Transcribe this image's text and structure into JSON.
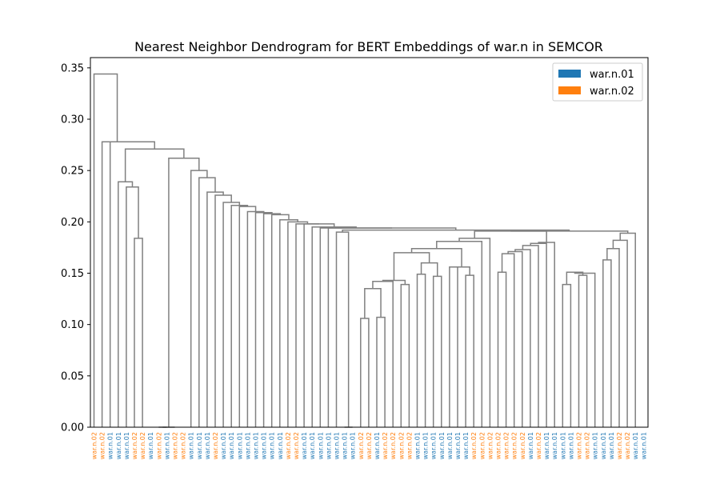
{
  "chart_data": {
    "type": "dendrogram",
    "title": "Nearest Neighbor Dendrogram for BERT Embeddings of war.n in SEMCOR",
    "xlabel": "",
    "ylabel": "",
    "ylim": [
      0,
      0.36
    ],
    "yticks": [
      "0.00",
      "0.05",
      "0.10",
      "0.15",
      "0.20",
      "0.25",
      "0.30",
      "0.35"
    ],
    "grid": false,
    "legend_position": "top-right",
    "legend": [
      {
        "label": "war.n.01",
        "color": "#1f77b4"
      },
      {
        "label": "war.n.02",
        "color": "#ff7f0e"
      }
    ],
    "link_color": "#808080",
    "leaf_labels": [
      "war.n.02",
      "war.n.02",
      "war.n.01",
      "war.n.01",
      "war.n.01",
      "war.n.02",
      "war.n.02",
      "war.n.01",
      "war.n.02",
      "war.n.01",
      "war.n.02",
      "war.n.02",
      "war.n.01",
      "war.n.01",
      "war.n.01",
      "war.n.02",
      "war.n.01",
      "war.n.01",
      "war.n.01",
      "war.n.01",
      "war.n.01",
      "war.n.01",
      "war.n.01",
      "war.n.01",
      "war.n.02",
      "war.n.02",
      "war.n.01",
      "war.n.01",
      "war.n.01",
      "war.n.01",
      "war.n.01",
      "war.n.01",
      "war.n.01",
      "war.n.02",
      "war.n.02",
      "war.n.01",
      "war.n.02",
      "war.n.02",
      "war.n.02",
      "war.n.02",
      "war.n.01",
      "war.n.01",
      "war.n.01",
      "war.n.01",
      "war.n.01",
      "war.n.01",
      "war.n.01",
      "war.n.02",
      "war.n.02",
      "war.n.02",
      "war.n.02",
      "war.n.02",
      "war.n.02",
      "war.n.02",
      "war.n.01",
      "war.n.02",
      "war.n.01",
      "war.n.01",
      "war.n.01",
      "war.n.01",
      "war.n.02",
      "war.n.02",
      "war.n.01",
      "war.n.01",
      "war.n.01",
      "war.n.02",
      "war.n.02",
      "war.n.01",
      "war.n.01"
    ],
    "links": [
      {
        "left": 33,
        "right": 34,
        "height": 0.106
      },
      {
        "left": 35,
        "right": 36,
        "height": 0.107
      },
      {
        "left": "L1",
        "right": "L2",
        "height": 0.135
      },
      {
        "left": "L3",
        "right": 37,
        "height": 0.142
      },
      {
        "left": 38,
        "right": 39,
        "height": 0.139
      },
      {
        "left": 40,
        "right": 41,
        "height": 0.149
      },
      {
        "left": 42,
        "right": 43,
        "height": 0.147
      },
      {
        "left": "L6",
        "right": "L7",
        "height": 0.16
      },
      {
        "left": "L4",
        "right": "L5",
        "height": 0.143
      },
      {
        "left": "L8",
        "right": "L9",
        "height": 0.17
      },
      {
        "left": 44,
        "right": 45,
        "height": 0.156
      },
      {
        "left": 46,
        "right": 47,
        "height": 0.148
      },
      {
        "left": "L11",
        "right": "L12",
        "height": 0.156
      },
      {
        "left": "L10",
        "right": "L13",
        "height": 0.174
      },
      {
        "left": 48,
        "right": "L14",
        "height": 0.181
      },
      {
        "left": 49,
        "right": "L15",
        "height": 0.184
      },
      {
        "left": 50,
        "right": 51,
        "height": 0.151
      },
      {
        "left": 52,
        "right": "L17",
        "height": 0.169
      },
      {
        "left": 53,
        "right": "L18",
        "height": 0.171
      },
      {
        "left": 54,
        "right": "L19",
        "height": 0.173
      },
      {
        "left": 55,
        "right": "L20",
        "height": 0.177
      },
      {
        "left": 56,
        "right": "L21",
        "height": 0.179
      },
      {
        "left": 57,
        "right": "L22",
        "height": 0.18
      },
      {
        "left": "L16",
        "right": "L23",
        "height": 0.191
      },
      {
        "left": 58,
        "right": 59,
        "height": 0.139
      },
      {
        "left": 60,
        "right": 61,
        "height": 0.148
      },
      {
        "left": "L25",
        "right": "L26",
        "height": 0.151
      },
      {
        "left": 62,
        "right": "L27",
        "height": 0.15
      },
      {
        "left": 63,
        "right": 64,
        "height": 0.163
      },
      {
        "left": 65,
        "right": "L29",
        "height": 0.174
      },
      {
        "left": 66,
        "right": "L30",
        "height": 0.182
      },
      {
        "left": 67,
        "right": "L31",
        "height": 0.189
      },
      {
        "left": "L24",
        "right": "L32",
        "height": 0.191
      },
      {
        "left": 31,
        "right": 32,
        "height": 0.0
      },
      {
        "left": 30,
        "right": "L34",
        "height": 0.19
      },
      {
        "left": "L35",
        "right": "L33",
        "height": 0.192
      },
      {
        "left": 29,
        "right": "L36",
        "height": 0.194
      },
      {
        "left": 28,
        "right": "L37",
        "height": 0.194
      },
      {
        "left": 27,
        "right": "L38",
        "height": 0.195
      },
      {
        "left": 26,
        "right": "L39",
        "height": 0.198
      },
      {
        "left": 25,
        "right": "L40",
        "height": 0.198
      },
      {
        "left": 24,
        "right": "L41",
        "height": 0.2
      },
      {
        "left": 23,
        "right": "L42",
        "height": 0.202
      },
      {
        "left": 22,
        "right": "L43",
        "height": 0.207
      },
      {
        "left": 21,
        "right": "L44",
        "height": 0.208
      },
      {
        "left": 20,
        "right": "L45",
        "height": 0.209
      },
      {
        "left": 19,
        "right": "L46",
        "height": 0.21
      },
      {
        "left": 18,
        "right": "L47",
        "height": 0.215
      },
      {
        "left": 17,
        "right": "L48",
        "height": 0.216
      },
      {
        "left": 16,
        "right": "L49",
        "height": 0.219
      },
      {
        "left": 15,
        "right": "L50",
        "height": 0.226
      },
      {
        "left": 14,
        "right": "L51",
        "height": 0.229
      },
      {
        "left": 13,
        "right": "L52",
        "height": 0.243
      },
      {
        "left": 12,
        "right": "L53",
        "height": 0.25
      },
      {
        "left": 8,
        "right": 9,
        "height": 0.0
      },
      {
        "left": "L55",
        "right": 10,
        "height": 0.0
      },
      {
        "left": "L56",
        "right": "L54",
        "height": 0.262
      },
      {
        "left": 5,
        "right": 6,
        "height": 0.184
      },
      {
        "left": 4,
        "right": "L58",
        "height": 0.234
      },
      {
        "left": 3,
        "right": "L59",
        "height": 0.239
      },
      {
        "left": "L60",
        "right": "L57",
        "height": 0.271
      },
      {
        "left": 2,
        "right": "L61",
        "height": 0.278
      },
      {
        "left": 1,
        "right": "L62",
        "height": 0.278
      },
      {
        "left": 0,
        "right": "L63",
        "height": 0.344
      }
    ]
  }
}
